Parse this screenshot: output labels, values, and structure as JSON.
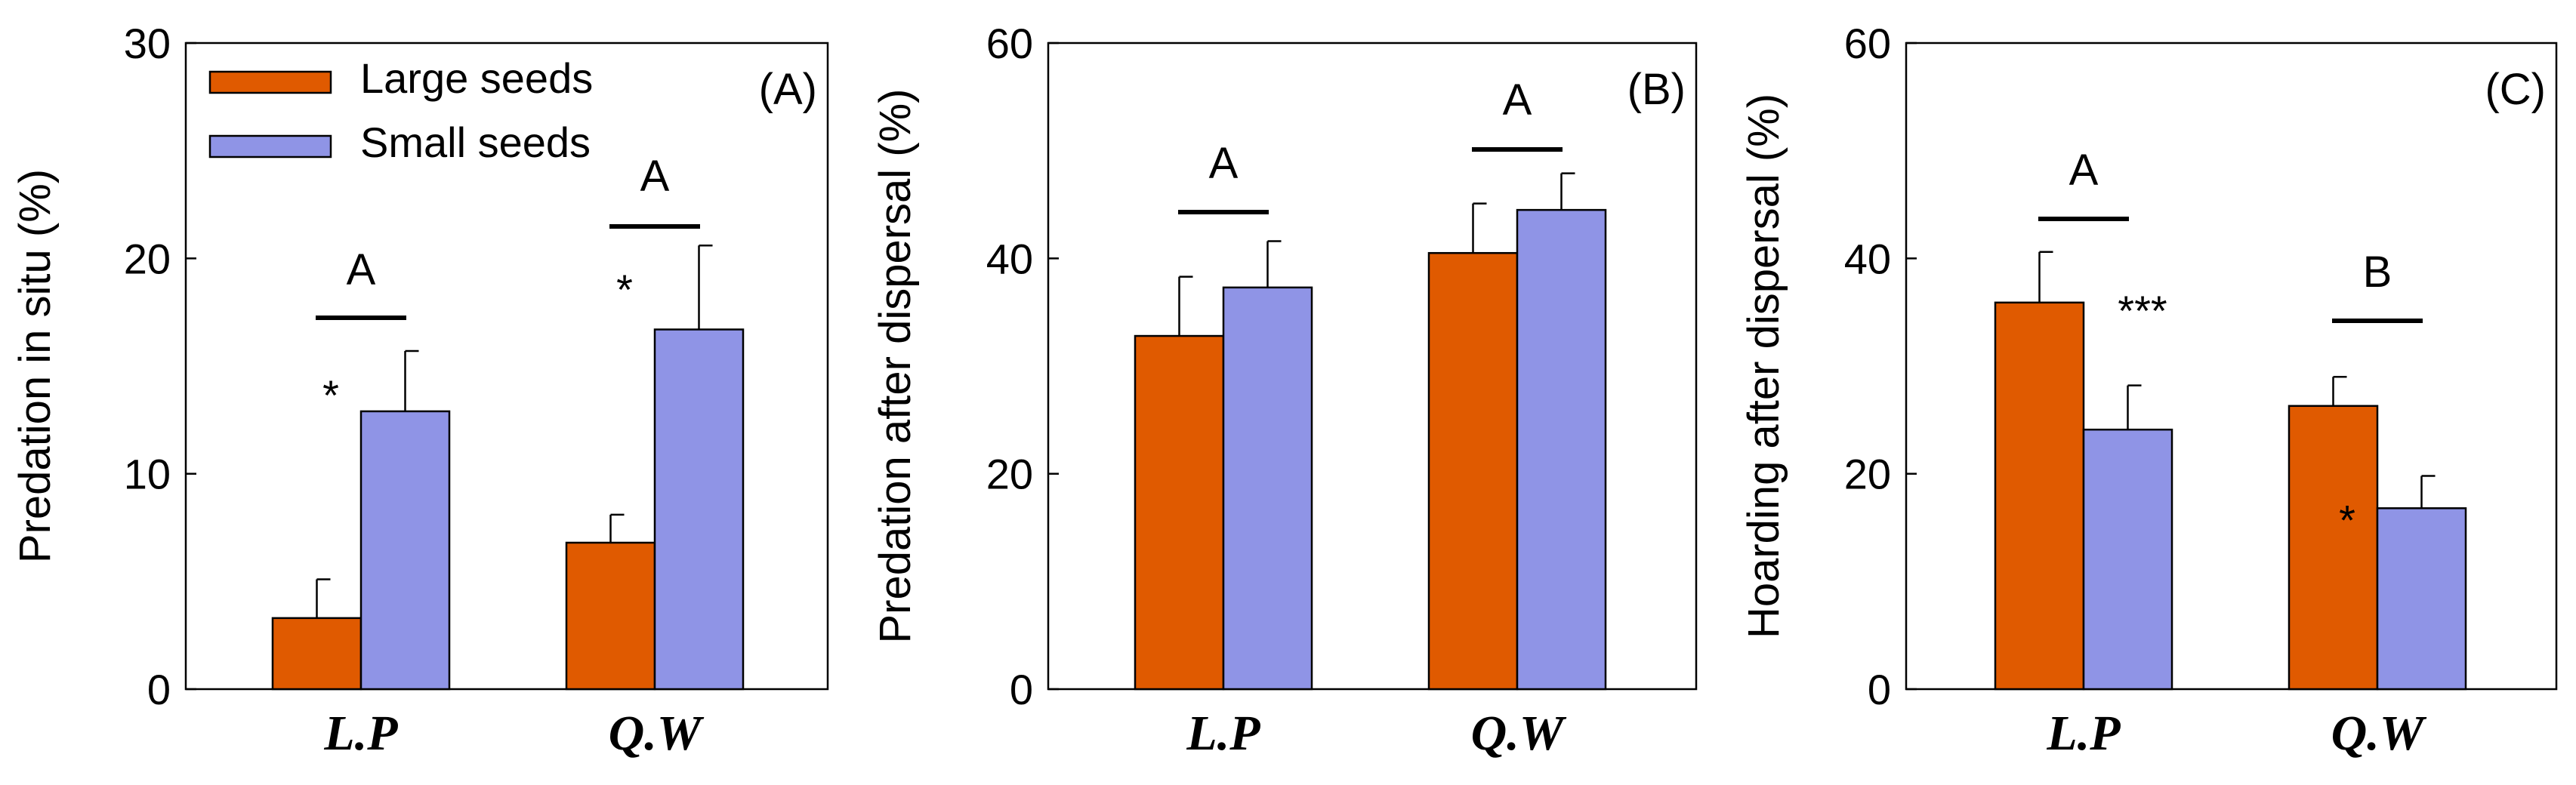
{
  "colors": {
    "large": "#E05A00",
    "small": "#8F94E6",
    "axis": "#000000"
  },
  "legend": [
    {
      "label": "Large  seeds",
      "color": "#E05A00"
    },
    {
      "label": "Small seeds",
      "color": "#8F94E6"
    }
  ],
  "chart_data": [
    {
      "type": "bar",
      "panel": "(A)",
      "ylabel": "Predation in situ (%)",
      "ylim": [
        0,
        30
      ],
      "yticks": [
        "0",
        "10",
        "20",
        "30"
      ],
      "categories": [
        "L.P",
        "Q.W"
      ],
      "series": [
        {
          "name": "Large  seeds",
          "values": [
            3.3,
            6.8
          ],
          "errors": [
            1.8,
            1.3
          ]
        },
        {
          "name": "Small seeds",
          "values": [
            12.9,
            16.7
          ],
          "errors": [
            2.8,
            3.9
          ]
        }
      ],
      "group_letters": [
        "A",
        "A"
      ],
      "significance": [
        "*",
        "*"
      ]
    },
    {
      "type": "bar",
      "panel": "(B)",
      "ylabel": "Predation after dispersal (%)",
      "ylim": [
        0,
        60
      ],
      "yticks": [
        "0",
        "20",
        "40",
        "60"
      ],
      "categories": [
        "L.P",
        "Q.W"
      ],
      "series": [
        {
          "name": "Large  seeds",
          "values": [
            32.8,
            40.5
          ],
          "errors": [
            5.5,
            4.6
          ]
        },
        {
          "name": "Small seeds",
          "values": [
            37.3,
            44.5
          ],
          "errors": [
            4.3,
            3.4
          ]
        }
      ],
      "group_letters": [
        "A",
        "A"
      ],
      "significance": [
        "",
        ""
      ]
    },
    {
      "type": "bar",
      "panel": "(C)",
      "ylabel": "Hoarding after dispersal (%)",
      "ylim": [
        0,
        60
      ],
      "yticks": [
        "0",
        "20",
        "40",
        "60"
      ],
      "categories": [
        "L.P",
        "Q.W"
      ],
      "series": [
        {
          "name": "Large  seeds",
          "values": [
            35.9,
            26.3
          ],
          "errors": [
            4.7,
            2.7
          ]
        },
        {
          "name": "Small seeds",
          "values": [
            24.1,
            16.8
          ],
          "errors": [
            4.1,
            3.0
          ]
        }
      ],
      "group_letters": [
        "A",
        "B"
      ],
      "significance": [
        "***",
        "*"
      ]
    }
  ]
}
